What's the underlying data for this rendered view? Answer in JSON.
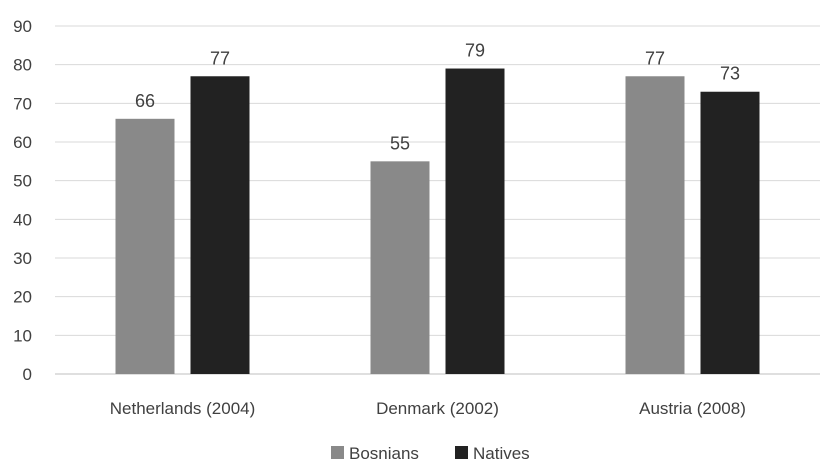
{
  "chart_data": {
    "type": "bar",
    "title": "",
    "xlabel": "",
    "ylabel": "",
    "ylim": [
      0,
      90
    ],
    "yticks": [
      0,
      10,
      20,
      30,
      40,
      50,
      60,
      70,
      80,
      90
    ],
    "grid": true,
    "legend_position": "bottom",
    "categories": [
      "Netherlands (2004)",
      "Denmark (2002)",
      "Austria (2008)"
    ],
    "series": [
      {
        "name": "Bosnians",
        "color": "#898989",
        "values": [
          66,
          55,
          77
        ],
        "labels": [
          "66",
          "55",
          "77"
        ]
      },
      {
        "name": "Natives",
        "color": "#222222",
        "values": [
          77,
          79,
          73
        ],
        "labels": [
          "77",
          "79",
          "73"
        ]
      }
    ]
  }
}
